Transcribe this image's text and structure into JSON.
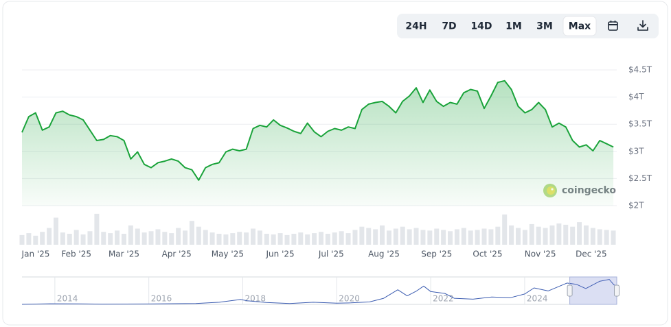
{
  "controls": [
    {
      "label": "24H"
    },
    {
      "label": "7D"
    },
    {
      "label": "14D"
    },
    {
      "label": "1M"
    },
    {
      "label": "3M"
    },
    {
      "label": "Max",
      "selected": true
    }
  ],
  "chart_data": [
    {
      "type": "line",
      "color": "#1aa33a",
      "x": [
        -1,
        3,
        7,
        11,
        15,
        19,
        23,
        27,
        31,
        35,
        39,
        43,
        47,
        51,
        55,
        59,
        63,
        67,
        71,
        75,
        79,
        83,
        87,
        91,
        95,
        99,
        103,
        107,
        111,
        115,
        119,
        123,
        127,
        131,
        135,
        139,
        143,
        147,
        151,
        155,
        159,
        163,
        167,
        171,
        175,
        179,
        183,
        187,
        191,
        195,
        199,
        203,
        207,
        211,
        215,
        219,
        223,
        227,
        231,
        235,
        239,
        243,
        247,
        251,
        255,
        259,
        263,
        267,
        271,
        275,
        279,
        283,
        287,
        291,
        295,
        299,
        303,
        307,
        311,
        315,
        319,
        323,
        327,
        331,
        335,
        339,
        343,
        347
      ],
      "values": [
        3.35,
        3.64,
        3.71,
        3.39,
        3.45,
        3.71,
        3.74,
        3.67,
        3.64,
        3.58,
        3.39,
        3.2,
        3.22,
        3.29,
        3.27,
        3.2,
        2.86,
        2.99,
        2.76,
        2.7,
        2.79,
        2.82,
        2.86,
        2.82,
        2.7,
        2.66,
        2.47,
        2.7,
        2.76,
        2.79,
        2.99,
        3.04,
        3.01,
        3.04,
        3.42,
        3.48,
        3.45,
        3.58,
        3.48,
        3.43,
        3.37,
        3.33,
        3.52,
        3.36,
        3.27,
        3.37,
        3.42,
        3.39,
        3.45,
        3.42,
        3.77,
        3.87,
        3.9,
        3.92,
        3.83,
        3.71,
        3.92,
        4.02,
        4.17,
        3.9,
        4.13,
        3.92,
        3.83,
        3.9,
        3.87,
        4.08,
        4.14,
        4.11,
        3.79,
        4.02,
        4.27,
        4.3,
        4.14,
        3.83,
        3.71,
        3.77,
        3.9,
        3.77,
        3.45,
        3.52,
        3.45,
        3.2,
        3.08,
        3.12,
        3.01,
        3.2,
        3.14,
        3.08
      ],
      "volume": [
        150,
        180,
        140,
        200,
        260,
        420,
        190,
        170,
        230,
        160,
        210,
        480,
        200,
        180,
        220,
        170,
        300,
        250,
        190,
        210,
        240,
        200,
        180,
        260,
        220,
        370,
        280,
        230,
        190,
        170,
        160,
        180,
        200,
        190,
        250,
        220,
        170,
        160,
        180,
        150,
        170,
        190,
        160,
        180,
        200,
        170,
        190,
        210,
        180,
        230,
        280,
        260,
        240,
        300,
        220,
        250,
        280,
        240,
        260,
        230,
        220,
        250,
        230,
        210,
        240,
        260,
        220,
        230,
        250,
        240,
        280,
        470,
        300,
        260,
        230,
        320,
        280,
        260,
        300,
        330,
        310,
        280,
        350,
        300,
        260,
        240,
        230,
        220
      ],
      "volume_ylim": [
        0,
        500
      ],
      "volume_color": "#e3e6ea",
      "xlim": [
        -1,
        349
      ],
      "xticks": [
        {
          "value": 0,
          "label": "Jan '25"
        },
        {
          "value": 31,
          "label": "Feb '25"
        },
        {
          "value": 59,
          "label": "Mar '25"
        },
        {
          "value": 90,
          "label": "Apr '25"
        },
        {
          "value": 120,
          "label": "May '25"
        },
        {
          "value": 151,
          "label": "Jun '25"
        },
        {
          "value": 181,
          "label": "Jul '25"
        },
        {
          "value": 212,
          "label": "Aug '25"
        },
        {
          "value": 243,
          "label": "Sep '25"
        },
        {
          "value": 273,
          "label": "Oct '25"
        },
        {
          "value": 304,
          "label": "Nov '25"
        },
        {
          "value": 334,
          "label": "Dec '25"
        }
      ],
      "ylim": [
        2,
        4.5
      ],
      "yticks": [
        {
          "value": 2,
          "label": "$2T"
        },
        {
          "value": 2.5,
          "label": "$2.5T"
        },
        {
          "value": 3,
          "label": "$3T"
        },
        {
          "value": 3.5,
          "label": "$3.5T"
        },
        {
          "value": 4,
          "label": "$4T"
        },
        {
          "value": 4.5,
          "label": "$4.5T"
        }
      ],
      "grid": true,
      "watermark": "coingecko"
    },
    {
      "type": "line",
      "color": "#3a5bb0",
      "x": [
        2013.3,
        2013.9,
        2014.5,
        2015,
        2016,
        2017,
        2017.5,
        2017.95,
        2018.1,
        2018.5,
        2019,
        2019.5,
        2020,
        2020.3,
        2020.7,
        2021,
        2021.3,
        2021.5,
        2021.7,
        2021.85,
        2022,
        2022.3,
        2022.5,
        2022.9,
        2023.3,
        2023.7,
        2024,
        2024.2,
        2024.5,
        2024.9,
        2025.1,
        2025.3,
        2025.6,
        2025.8,
        2025.9,
        2025.96
      ],
      "values": [
        0.01,
        0.1,
        0.08,
        0.04,
        0.07,
        0.15,
        0.35,
        0.8,
        0.6,
        0.3,
        0.13,
        0.35,
        0.2,
        0.25,
        0.4,
        1.0,
        2.4,
        1.4,
        2.2,
        3.0,
        2.1,
        1.8,
        1.0,
        0.85,
        1.2,
        1.1,
        1.7,
        2.7,
        2.2,
        3.5,
        3.3,
        2.6,
        3.8,
        4.1,
        3.2,
        3.1
      ],
      "xlim": [
        2013.3,
        2025.96
      ],
      "ylim": [
        0,
        4.5
      ],
      "xticks": [
        2014,
        2016,
        2018,
        2020,
        2022,
        2024
      ],
      "selection": [
        2024.96,
        2025.96
      ],
      "grid": true
    }
  ]
}
